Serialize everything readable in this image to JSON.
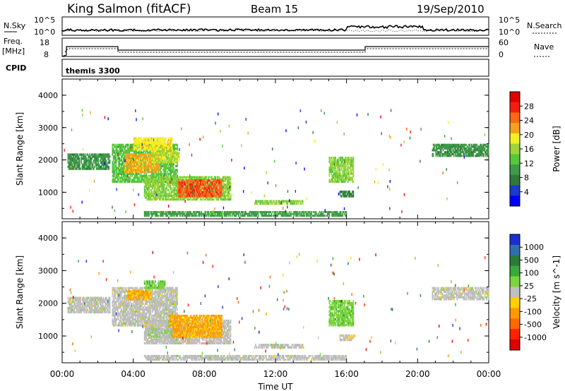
{
  "header": {
    "station": "King Salmon (fitACF)",
    "beam": "Beam 15",
    "date": "19/Sep/2010"
  },
  "top_panel": {
    "left_label": "N.Sky",
    "right_label": "N.Search",
    "tick_top": "10^5",
    "tick_bottom": "10^0"
  },
  "freq_panel": {
    "left_label_1": "Freq.",
    "left_label_2": "[MHz]",
    "left_tick_top": "18",
    "left_tick_bottom": "8",
    "right_label": "Nave",
    "right_tick_top": "60",
    "right_tick_bottom": "0"
  },
  "cpid": {
    "label": "CPID",
    "value": "themis 3300"
  },
  "colors": {
    "power_scale": [
      "#0000ff",
      "#1a3cc8",
      "#2f7a3a",
      "#3f9a4a",
      "#56c83a",
      "#a0d43a",
      "#f4ee22",
      "#f6a020",
      "#f66a16",
      "#f41e10",
      "#e00000"
    ],
    "velocity_scale": [
      "#1a2fd0",
      "#2f6fb0",
      "#2c7a3a",
      "#3aa83a",
      "#7ad43a",
      "#c0c0c0",
      "#ffd000",
      "#ff9900",
      "#ff6a00",
      "#ff2200",
      "#e00000"
    ],
    "ground_scatter": "#b8b8b8"
  },
  "chart_data": [
    {
      "type": "heatmap",
      "name_id": "power",
      "xlabel": "",
      "ylabel": "Slant Range [km]",
      "x_range_hours": [
        0,
        24
      ],
      "ylim": [
        180,
        4500
      ],
      "y_ticks": [
        "1000",
        "2000",
        "3000",
        "4000"
      ],
      "colorbar": {
        "label": "Power [dB]",
        "ticks": [
          "4",
          "8",
          "12",
          "16",
          "20",
          "24",
          "28"
        ],
        "range": [
          0,
          30
        ]
      },
      "regions": [
        {
          "x0": 0.3,
          "x1": 2.7,
          "y0": 1700,
          "y1": 2200,
          "value": 9
        },
        {
          "x0": 2.8,
          "x1": 6.5,
          "y0": 1300,
          "y1": 2500,
          "value": 12
        },
        {
          "x0": 3.5,
          "x1": 5.5,
          "y0": 1600,
          "y1": 2200,
          "value": 20
        },
        {
          "x0": 4.0,
          "x1": 6.2,
          "y0": 2300,
          "y1": 2700,
          "value": 18
        },
        {
          "x0": 5.0,
          "x1": 6.6,
          "y0": 1900,
          "y1": 2300,
          "value": 16
        },
        {
          "x0": 4.6,
          "x1": 9.5,
          "y0": 750,
          "y1": 1500,
          "value": 14
        },
        {
          "x0": 6.5,
          "x1": 9.0,
          "y0": 850,
          "y1": 1400,
          "value": 24
        },
        {
          "x0": 10.8,
          "x1": 13.6,
          "y0": 620,
          "y1": 760,
          "value": 14
        },
        {
          "x0": 15.0,
          "x1": 16.4,
          "y0": 1300,
          "y1": 2100,
          "value": 14
        },
        {
          "x0": 15.6,
          "x1": 16.4,
          "y0": 850,
          "y1": 1050,
          "value": 8
        },
        {
          "x0": 20.8,
          "x1": 24.0,
          "y0": 2100,
          "y1": 2500,
          "value": 9
        },
        {
          "x0": 4.6,
          "x1": 16.0,
          "y0": 250,
          "y1": 420,
          "value": 10
        }
      ]
    },
    {
      "type": "heatmap",
      "name_id": "velocity",
      "xlabel": "Time UT",
      "ylabel": "Slant Range [km]",
      "x_range_hours": [
        0,
        24
      ],
      "x_ticks": [
        "00:00",
        "04:00",
        "08:00",
        "12:00",
        "16:00",
        "20:00",
        "00:00"
      ],
      "ylim": [
        180,
        4500
      ],
      "y_ticks": [
        "1000",
        "2000",
        "3000",
        "4000"
      ],
      "colorbar": {
        "label": "Velocity [m s^-1]",
        "ticks": [
          "1000",
          "500",
          "100",
          "25",
          "-25",
          "-100",
          "-500",
          "-1000"
        ],
        "range": [
          -1000,
          1000
        ]
      },
      "regions": [
        {
          "x0": 0.3,
          "x1": 2.7,
          "y0": 1700,
          "y1": 2200,
          "value": 0
        },
        {
          "x0": 2.8,
          "x1": 6.5,
          "y0": 1300,
          "y1": 2500,
          "value": 0
        },
        {
          "x0": 3.6,
          "x1": 5.0,
          "y0": 2100,
          "y1": 2400,
          "value": -300
        },
        {
          "x0": 4.6,
          "x1": 5.8,
          "y0": 2450,
          "y1": 2700,
          "value": 200
        },
        {
          "x0": 4.6,
          "x1": 9.5,
          "y0": 750,
          "y1": 1500,
          "value": 0
        },
        {
          "x0": 6.0,
          "x1": 9.0,
          "y0": 950,
          "y1": 1650,
          "value": -300
        },
        {
          "x0": 4.8,
          "x1": 6.2,
          "y0": 950,
          "y1": 1250,
          "value": 60
        },
        {
          "x0": 10.8,
          "x1": 13.6,
          "y0": 620,
          "y1": 760,
          "value": 0
        },
        {
          "x0": 15.0,
          "x1": 16.4,
          "y0": 1300,
          "y1": 2100,
          "value": 200
        },
        {
          "x0": 15.6,
          "x1": 16.4,
          "y0": 850,
          "y1": 1050,
          "value": -60
        },
        {
          "x0": 20.8,
          "x1": 24.0,
          "y0": 2100,
          "y1": 2500,
          "value": 0
        },
        {
          "x0": 4.6,
          "x1": 16.0,
          "y0": 250,
          "y1": 420,
          "value": 0
        }
      ]
    }
  ]
}
